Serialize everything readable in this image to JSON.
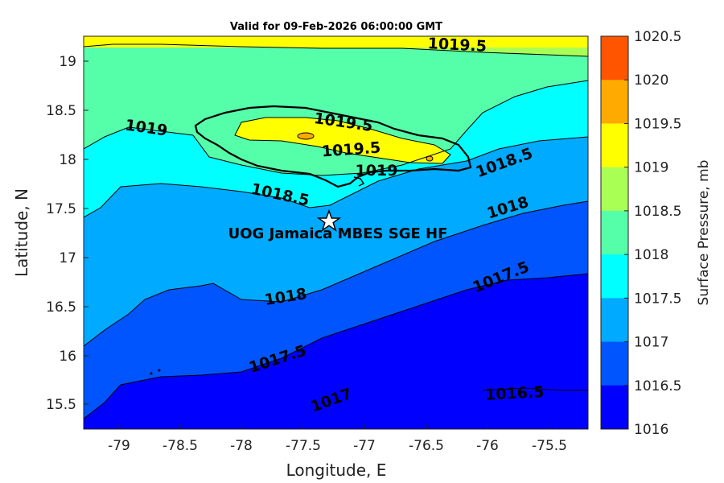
{
  "title": "Valid for 09-Feb-2026 06:00:00 GMT",
  "xlabel": "Longitude, E",
  "ylabel": "Latitude, N",
  "colorbar_label": "Surface Pressure, mb",
  "site_label": "UOG Jamaica MBES SGE HF",
  "x_ticks": [
    "-79",
    "-78.5",
    "-78",
    "-77.5",
    "-77",
    "-76.5",
    "-76",
    "-75.5"
  ],
  "y_ticks": [
    "19",
    "18.5",
    "18",
    "17.5",
    "17",
    "16.5",
    "16",
    "15.5"
  ],
  "colorbar": {
    "ticks": [
      "1020.5",
      "1020",
      "1019.5",
      "1019",
      "1018.5",
      "1018",
      "1017.5",
      "1017",
      "1016.5",
      "1016"
    ],
    "colors": [
      "#ff5500",
      "#ffaa00",
      "#ffff00",
      "#aaff55",
      "#55ffaa",
      "#00ffff",
      "#00aaff",
      "#0055ff",
      "#0000ff",
      "#0000aa"
    ]
  },
  "contour_labels": [
    "1019.5",
    "1019",
    "1019.5",
    "1019.5",
    "1019",
    "1018.5",
    "1018.5",
    "1018",
    "1018",
    "1017.5",
    "1017.5",
    "1017",
    "1016.5"
  ],
  "map": {
    "lon_range": [
      -79.3,
      -75.2
    ],
    "lat_range": [
      15.25,
      19.25
    ],
    "site_marker": {
      "lon": -77.3,
      "lat": 17.37,
      "symbol": "star"
    }
  }
}
